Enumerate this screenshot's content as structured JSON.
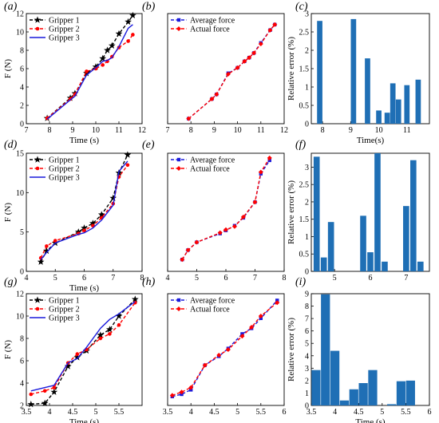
{
  "colors": {
    "series1": "#000000",
    "series2": "#ff0000",
    "series3": "#1a1adc",
    "average": "#1a1adc",
    "actual": "#ff0000",
    "bar": "#1f6fb5"
  },
  "chart_data": [
    {
      "type": "line",
      "panel_label": "(a)",
      "xlabel": "Time (s)",
      "ylabel": "F (N)",
      "xlim": [
        7,
        12
      ],
      "ylim": [
        0,
        12
      ],
      "xticks": [
        7,
        8,
        9,
        10,
        11,
        12
      ],
      "yticks": [
        0,
        2,
        4,
        6,
        8,
        10,
        12
      ],
      "legend_position": "top-left",
      "series": [
        {
          "name": "Gripper 1",
          "color": "#000000",
          "dash": true,
          "marker": "star",
          "x": [
            7.9,
            8.9,
            9.1,
            9.6,
            10.0,
            10.3,
            10.5,
            10.7,
            11.0,
            11.4,
            11.6
          ],
          "y": [
            0.6,
            2.8,
            3.3,
            5.5,
            6.2,
            7.1,
            8.0,
            8.5,
            9.8,
            11.1,
            11.8
          ]
        },
        {
          "name": "Gripper 2",
          "color": "#ff0000",
          "dash": true,
          "marker": "circle",
          "x": [
            7.9,
            8.9,
            9.1,
            9.6,
            10.0,
            10.3,
            10.5,
            10.7,
            11.0,
            11.4,
            11.6
          ],
          "y": [
            0.6,
            2.7,
            3.2,
            5.7,
            6.0,
            6.4,
            6.8,
            7.3,
            8.3,
            9.0,
            9.7
          ]
        },
        {
          "name": "Gripper 3",
          "color": "#1a1adc",
          "dash": false,
          "marker": "none",
          "x": [
            7.9,
            8.9,
            9.1,
            9.6,
            10.0,
            10.3,
            10.5,
            10.7,
            11.0,
            11.4,
            11.6
          ],
          "y": [
            0.5,
            2.6,
            3.0,
            5.3,
            6.1,
            6.8,
            6.9,
            7.2,
            8.4,
            10.4,
            10.8
          ]
        }
      ]
    },
    {
      "type": "line",
      "panel_label": "(b)",
      "xlabel": "",
      "ylabel": "",
      "xlim": [
        7,
        12
      ],
      "ylim": [
        0,
        12
      ],
      "xticks": [
        7,
        8,
        9,
        10,
        11,
        12
      ],
      "yticks": [],
      "legend_position": "top-left",
      "series": [
        {
          "name": "Average force",
          "color": "#1a1adc",
          "dash": true,
          "marker": "square",
          "x": [
            7.9,
            8.9,
            9.1,
            9.6,
            10.0,
            10.3,
            10.5,
            10.7,
            11.0,
            11.4,
            11.6
          ],
          "y": [
            0.55,
            2.7,
            3.2,
            5.5,
            6.1,
            6.8,
            7.2,
            7.7,
            8.8,
            10.2,
            10.8
          ]
        },
        {
          "name": "Actual force",
          "color": "#ff0000",
          "dash": true,
          "marker": "diamond",
          "x": [
            7.9,
            8.9,
            9.1,
            9.6,
            10.0,
            10.3,
            10.5,
            10.7,
            11.0,
            11.4,
            11.6
          ],
          "y": [
            0.55,
            2.7,
            3.2,
            5.4,
            6.1,
            6.8,
            7.2,
            7.7,
            8.7,
            10.2,
            10.8
          ]
        }
      ]
    },
    {
      "type": "bar",
      "panel_label": "(c)",
      "xlabel": "Time(s)",
      "ylabel": "Relative error (%)",
      "xlim": [
        7.6,
        11.8
      ],
      "ylim": [
        0,
        3
      ],
      "xticks": [
        8,
        9,
        10,
        11
      ],
      "yticks": [
        0,
        0.5,
        1,
        1.5,
        2,
        2.5,
        3
      ],
      "bar_width": 0.19,
      "x": [
        7.9,
        8.9,
        9.1,
        9.6,
        10.0,
        10.3,
        10.5,
        10.7,
        11.0,
        11.4,
        11.6
      ],
      "values": [
        2.8,
        0.0,
        2.85,
        1.78,
        0.36,
        0.3,
        1.1,
        0.66,
        1.05,
        1.2,
        0.0
      ]
    },
    {
      "type": "line",
      "panel_label": "(d)",
      "xlabel": "Time (s)",
      "ylabel": "F (N)",
      "xlim": [
        4,
        8
      ],
      "ylim": [
        0,
        15
      ],
      "xticks": [
        4,
        5,
        6,
        7,
        8
      ],
      "yticks": [
        0,
        5,
        10,
        15
      ],
      "legend_position": "top-left",
      "series": [
        {
          "name": "Gripper 1",
          "color": "#000000",
          "dash": true,
          "marker": "star",
          "x": [
            4.5,
            4.7,
            5.0,
            5.8,
            6.0,
            6.3,
            6.6,
            7.0,
            7.2,
            7.5
          ],
          "y": [
            1.2,
            2.6,
            3.6,
            5.0,
            5.5,
            6.1,
            7.2,
            9.3,
            12.5,
            14.8
          ]
        },
        {
          "name": "Gripper 2",
          "color": "#ff0000",
          "dash": true,
          "marker": "circle",
          "x": [
            4.5,
            4.7,
            5.0,
            5.8,
            6.0,
            6.3,
            6.6,
            7.0,
            7.2,
            7.5
          ],
          "y": [
            1.7,
            3.2,
            3.9,
            4.8,
            5.2,
            5.8,
            6.8,
            8.6,
            12.0,
            13.5
          ]
        },
        {
          "name": "Gripper 3",
          "color": "#1a1adc",
          "dash": false,
          "marker": "none",
          "x": [
            4.5,
            4.7,
            5.0,
            5.8,
            6.0,
            6.3,
            6.6,
            7.0,
            7.2,
            7.5
          ],
          "y": [
            1.5,
            2.4,
            3.6,
            4.7,
            4.9,
            5.5,
            6.5,
            8.4,
            12.7,
            14.0
          ]
        }
      ]
    },
    {
      "type": "line",
      "panel_label": "(e)",
      "xlabel": "",
      "ylabel": "",
      "xlim": [
        4,
        8
      ],
      "ylim": [
        0,
        15
      ],
      "xticks": [
        4,
        5,
        6,
        7,
        8
      ],
      "yticks": [],
      "legend_position": "top-left",
      "series": [
        {
          "name": "Average force",
          "color": "#1a1adc",
          "dash": true,
          "marker": "square",
          "x": [
            4.5,
            4.7,
            5.0,
            5.8,
            6.0,
            6.3,
            6.6,
            7.0,
            7.2,
            7.5
          ],
          "y": [
            1.5,
            2.7,
            3.7,
            4.8,
            5.2,
            5.8,
            6.8,
            8.8,
            12.4,
            14.1
          ]
        },
        {
          "name": "Actual force",
          "color": "#ff0000",
          "dash": true,
          "marker": "diamond",
          "x": [
            4.5,
            4.7,
            5.0,
            5.8,
            6.0,
            6.3,
            6.6,
            7.0,
            7.2,
            7.5
          ],
          "y": [
            1.5,
            2.7,
            3.7,
            4.9,
            5.3,
            5.7,
            6.9,
            8.8,
            12.6,
            14.4
          ]
        }
      ]
    },
    {
      "type": "bar",
      "panel_label": "(f)",
      "xlabel": "",
      "ylabel": "Relative error (%)",
      "xlim": [
        4.35,
        7.65
      ],
      "ylim": [
        0,
        3.4
      ],
      "xticks": [
        5,
        6,
        7
      ],
      "yticks": [
        0,
        0.5,
        1,
        1.5,
        2,
        2.5,
        3
      ],
      "bar_width": 0.17,
      "x": [
        4.5,
        4.7,
        4.9,
        5.8,
        6.0,
        6.2,
        6.4,
        7.0,
        7.2,
        7.4
      ],
      "values": [
        3.3,
        0.4,
        1.42,
        1.6,
        0.55,
        3.4,
        0.28,
        1.88,
        3.2,
        0.28
      ]
    },
    {
      "type": "line",
      "panel_label": "(g)",
      "xlabel": "Time (s)",
      "ylabel": "F (N)",
      "xlim": [
        3.5,
        6
      ],
      "ylim": [
        2,
        12
      ],
      "xticks": [
        3.5,
        4,
        4.5,
        5,
        5.5
      ],
      "yticks": [
        2,
        4,
        6,
        8,
        10,
        12
      ],
      "legend_position": "top-left",
      "series": [
        {
          "name": "Gripper 1",
          "color": "#000000",
          "dash": true,
          "marker": "star",
          "x": [
            3.6,
            3.9,
            4.1,
            4.4,
            4.6,
            4.8,
            5.1,
            5.3,
            5.5,
            5.85
          ],
          "y": [
            2.1,
            2.2,
            3.2,
            5.5,
            6.3,
            6.9,
            8.3,
            8.8,
            10.0,
            11.5
          ]
        },
        {
          "name": "Gripper 2",
          "color": "#ff0000",
          "dash": true,
          "marker": "circle",
          "x": [
            3.6,
            3.9,
            4.1,
            4.4,
            4.6,
            4.8,
            5.1,
            5.3,
            5.5,
            5.85
          ],
          "y": [
            3.0,
            3.3,
            3.6,
            5.8,
            6.6,
            7.0,
            8.0,
            8.4,
            9.2,
            11.2
          ]
        },
        {
          "name": "Gripper 3",
          "color": "#1a1adc",
          "dash": false,
          "marker": "none",
          "x": [
            3.6,
            3.9,
            4.1,
            4.4,
            4.6,
            4.8,
            5.1,
            5.3,
            5.5,
            5.85
          ],
          "y": [
            3.3,
            3.6,
            3.8,
            5.8,
            6.2,
            7.2,
            8.9,
            9.7,
            10.2,
            11.3
          ]
        }
      ]
    },
    {
      "type": "line",
      "panel_label": "(h)",
      "xlabel": "",
      "ylabel": "",
      "xlim": [
        3.5,
        6
      ],
      "ylim": [
        2,
        12
      ],
      "xticks": [
        3.5,
        4,
        4.5,
        5,
        5.5,
        6
      ],
      "yticks": [],
      "legend_position": "top-left",
      "series": [
        {
          "name": "Average force",
          "color": "#1a1adc",
          "dash": true,
          "marker": "square",
          "x": [
            3.6,
            3.8,
            4.0,
            4.3,
            4.6,
            4.8,
            5.1,
            5.3,
            5.5,
            5.85
          ],
          "y": [
            2.8,
            3.0,
            3.4,
            5.6,
            6.4,
            7.1,
            8.4,
            8.9,
            9.8,
            11.4
          ]
        },
        {
          "name": "Actual force",
          "color": "#ff0000",
          "dash": true,
          "marker": "diamond",
          "x": [
            3.6,
            3.8,
            4.0,
            4.3,
            4.6,
            4.8,
            5.1,
            5.3,
            5.5,
            5.85
          ],
          "y": [
            2.9,
            3.2,
            3.6,
            5.6,
            6.5,
            7.0,
            8.2,
            9.0,
            10.0,
            11.2
          ]
        }
      ]
    },
    {
      "type": "bar",
      "panel_label": "(i)",
      "xlabel": "Time (s)",
      "ylabel": "Relative error (%)",
      "xlim": [
        3.5,
        6
      ],
      "ylim": [
        0,
        9
      ],
      "xticks": [
        3.5,
        4,
        4.5,
        5,
        5.5,
        6
      ],
      "yticks": [
        0,
        1,
        2,
        3,
        4,
        5,
        6,
        7,
        8,
        9
      ],
      "bar_width": 0.19,
      "x": [
        3.6,
        3.8,
        4.0,
        4.2,
        4.4,
        4.6,
        4.8,
        5.0,
        5.2,
        5.4,
        5.6
      ],
      "values": [
        2.85,
        8.95,
        4.4,
        0.4,
        1.3,
        1.8,
        2.85,
        0.0,
        0.1,
        1.95,
        2.0
      ]
    }
  ]
}
